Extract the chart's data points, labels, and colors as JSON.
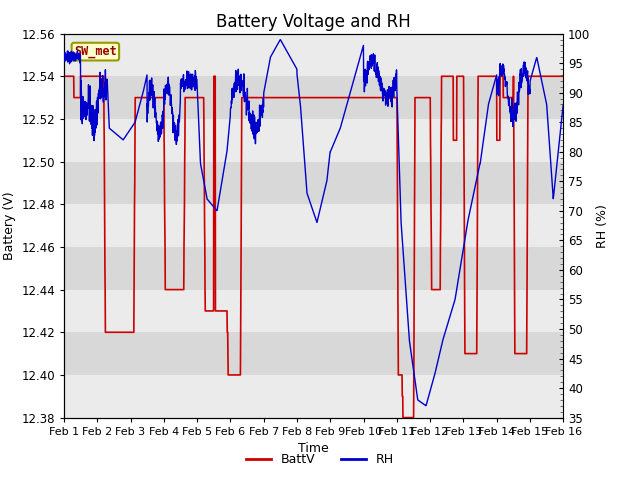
{
  "title": "Battery Voltage and RH",
  "xlabel": "Time",
  "ylabel_left": "Battery (V)",
  "ylabel_right": "RH (%)",
  "ylim_left": [
    12.38,
    12.56
  ],
  "ylim_right": [
    35,
    100
  ],
  "yticks_left": [
    12.38,
    12.4,
    12.42,
    12.44,
    12.46,
    12.48,
    12.5,
    12.52,
    12.54,
    12.56
  ],
  "yticks_right": [
    35,
    40,
    45,
    50,
    55,
    60,
    65,
    70,
    75,
    80,
    85,
    90,
    95,
    100
  ],
  "xtick_labels": [
    "Feb 1",
    "Feb 2",
    "Feb 3",
    "Feb 4",
    "Feb 5",
    "Feb 6",
    "Feb 7",
    "Feb 8",
    "Feb 9",
    "Feb 10",
    "Feb 11",
    "Feb 12",
    "Feb 13",
    "Feb 14",
    "Feb 15",
    "Feb 16"
  ],
  "station_label": "SW_met",
  "batt_color": "#cc0000",
  "rh_color": "#0000cc",
  "legend_items": [
    "BattV",
    "RH"
  ],
  "bg_color": "#ffffff",
  "plot_bg_light": "#ebebeb",
  "plot_bg_dark": "#d8d8d8",
  "title_fontsize": 12,
  "label_fontsize": 9,
  "tick_fontsize": 8.5
}
